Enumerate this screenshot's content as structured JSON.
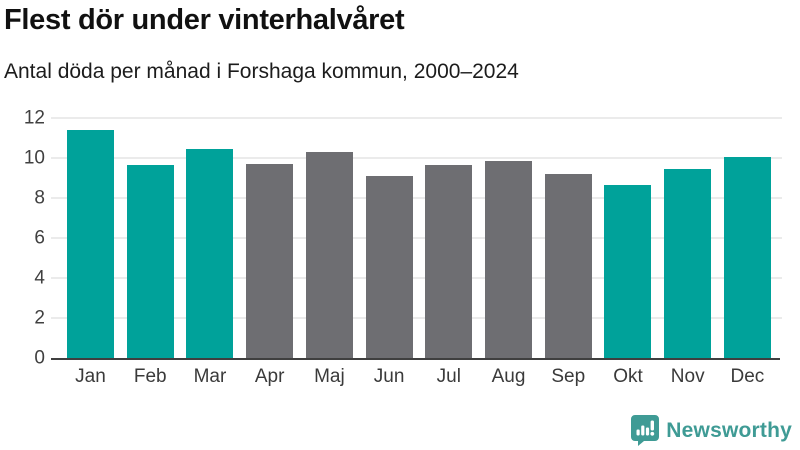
{
  "chart_data": {
    "type": "bar",
    "title": "Flest dör under vinterhalvåret",
    "subtitle": "Antal döda per månad i Forshaga kommun, 2000–2024",
    "categories": [
      "Jan",
      "Feb",
      "Mar",
      "Apr",
      "Maj",
      "Jun",
      "Jul",
      "Aug",
      "Sep",
      "Okt",
      "Nov",
      "Dec"
    ],
    "values": [
      11.4,
      9.65,
      10.45,
      9.7,
      10.3,
      9.1,
      9.65,
      9.85,
      9.2,
      8.65,
      9.45,
      10.05
    ],
    "bar_colors": [
      "#00a29a",
      "#00a29a",
      "#00a29a",
      "#6e6e72",
      "#6e6e72",
      "#6e6e72",
      "#6e6e72",
      "#6e6e72",
      "#6e6e72",
      "#00a29a",
      "#00a29a",
      "#00a29a"
    ],
    "xlabel": "",
    "ylabel": "",
    "ylim": [
      0,
      12
    ],
    "yticks": [
      0,
      2,
      4,
      6,
      8,
      10,
      12
    ],
    "grid": true,
    "legend": "none",
    "highlight_meaning": "winter months (Jan–Mar, Okt–Dec) in teal, summer months in gray"
  },
  "colors": {
    "winter_bar": "#00a29a",
    "summer_bar": "#6e6e72",
    "axis": "#3f3f3f",
    "grid": "#ebebeb",
    "brand": "#3f9b95"
  },
  "branding": {
    "wordmark": "Newsworthy",
    "icon": "speech-bubble-with-bar-chart-and-exclamation"
  }
}
